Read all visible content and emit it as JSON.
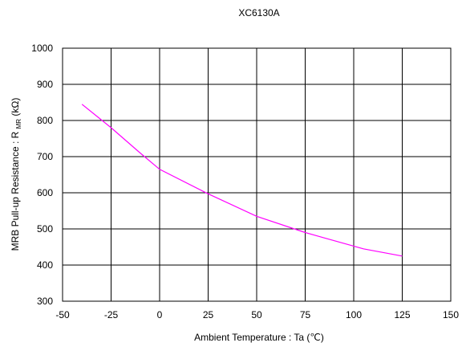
{
  "chart_data": {
    "type": "line",
    "title": "XC6130A",
    "xlabel": "Ambient Temperature : Ta (℃)",
    "ylabel": "MRB Pull-up Resistance : R",
    "ylabel_subscript": "MR",
    "ylabel_unit": " (kΩ)",
    "xlim": [
      -50,
      150
    ],
    "ylim": [
      300,
      1000
    ],
    "xticks": [
      -50,
      -25,
      0,
      25,
      50,
      75,
      100,
      125,
      150
    ],
    "yticks": [
      300,
      400,
      500,
      600,
      700,
      800,
      900,
      1000
    ],
    "grid": true,
    "series": [
      {
        "color": "#ff00ff",
        "x": [
          -40,
          -25,
          -10,
          0,
          25,
          50,
          75,
          85,
          105,
          125
        ],
        "y": [
          845,
          780,
          710,
          665,
          597,
          535,
          490,
          475,
          445,
          425
        ]
      }
    ]
  }
}
